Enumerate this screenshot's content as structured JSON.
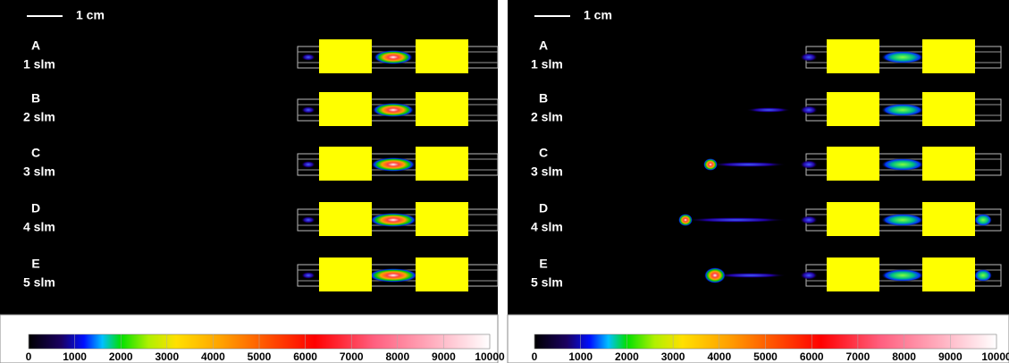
{
  "panels": [
    {
      "scale_label": "1 cm",
      "rows": [
        {
          "letter": "A",
          "flow": "1 slm"
        },
        {
          "letter": "B",
          "flow": "2 slm"
        },
        {
          "letter": "C",
          "flow": "3 slm"
        },
        {
          "letter": "D",
          "flow": "4 slm"
        },
        {
          "letter": "E",
          "flow": "5 slm"
        }
      ],
      "colorbar_ticks": [
        0,
        1000,
        2000,
        3000,
        4000,
        5000,
        6000,
        7000,
        8000,
        9000,
        10000
      ]
    },
    {
      "scale_label": "1 cm",
      "rows": [
        {
          "letter": "A",
          "flow": "1 slm"
        },
        {
          "letter": "B",
          "flow": "2 slm"
        },
        {
          "letter": "C",
          "flow": "3 slm"
        },
        {
          "letter": "D",
          "flow": "4 slm"
        },
        {
          "letter": "E",
          "flow": "5 slm"
        }
      ],
      "colorbar_ticks": [
        0,
        1000,
        2000,
        3000,
        4000,
        5000,
        6000,
        7000,
        8000,
        9000,
        10000
      ]
    }
  ]
}
